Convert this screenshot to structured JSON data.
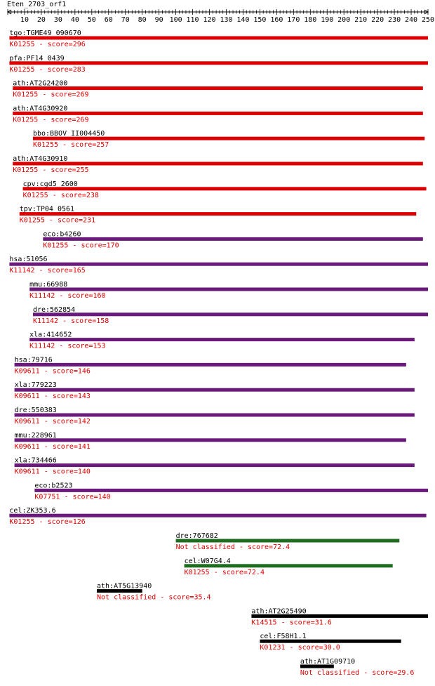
{
  "title": "Eten_2703_orf1",
  "axis": {
    "min": 0,
    "max": 250,
    "major_step": 10,
    "minor_step": 2,
    "ticks": [
      10,
      20,
      30,
      40,
      50,
      60,
      70,
      80,
      90,
      100,
      110,
      120,
      130,
      140,
      150,
      160,
      170,
      180,
      190,
      200,
      210,
      220,
      230,
      240,
      250
    ]
  },
  "colors": {
    "red": "#dd0000",
    "purple": "#6a1a7a",
    "green": "#1f6b1f",
    "black": "#000000",
    "label_red": "#e00000"
  },
  "hits": [
    {
      "id": "tgo:TGME49_090670",
      "ko": "K01255",
      "score_label": "K01255 - score=296",
      "start": 1,
      "end": 250,
      "color": "red"
    },
    {
      "id": "pfa:PF14_0439",
      "ko": "K01255",
      "score_label": "K01255 - score=283",
      "start": 1,
      "end": 250,
      "color": "red"
    },
    {
      "id": "ath:AT2G24200",
      "ko": "K01255",
      "score_label": "K01255 - score=269",
      "start": 3,
      "end": 247,
      "color": "red"
    },
    {
      "id": "ath:AT4G30920",
      "ko": "K01255",
      "score_label": "K01255 - score=269",
      "start": 3,
      "end": 247,
      "color": "red"
    },
    {
      "id": "bbo:BBOV_II004450",
      "ko": "K01255",
      "score_label": "K01255 - score=257",
      "start": 15,
      "end": 248,
      "color": "red"
    },
    {
      "id": "ath:AT4G30910",
      "ko": "K01255",
      "score_label": "K01255 - score=255",
      "start": 3,
      "end": 247,
      "color": "red"
    },
    {
      "id": "cpv:cgd5_2600",
      "ko": "K01255",
      "score_label": "K01255 - score=238",
      "start": 9,
      "end": 249,
      "color": "red"
    },
    {
      "id": "tpv:TP04_0561",
      "ko": "K01255",
      "score_label": "K01255 - score=231",
      "start": 7,
      "end": 243,
      "color": "red"
    },
    {
      "id": "eco:b4260",
      "ko": "K01255",
      "score_label": "K01255 - score=170",
      "start": 21,
      "end": 247,
      "color": "purple"
    },
    {
      "id": "hsa:51056",
      "ko": "K11142",
      "score_label": "K11142 - score=165",
      "start": 1,
      "end": 250,
      "color": "purple"
    },
    {
      "id": "mmu:66988",
      "ko": "K11142",
      "score_label": "K11142 - score=160",
      "start": 13,
      "end": 250,
      "color": "purple"
    },
    {
      "id": "dre:562854",
      "ko": "K11142",
      "score_label": "K11142 - score=158",
      "start": 15,
      "end": 250,
      "color": "purple"
    },
    {
      "id": "xla:414652",
      "ko": "K11142",
      "score_label": "K11142 - score=153",
      "start": 13,
      "end": 242,
      "color": "purple"
    },
    {
      "id": "hsa:79716",
      "ko": "K09611",
      "score_label": "K09611 - score=146",
      "start": 4,
      "end": 237,
      "color": "purple"
    },
    {
      "id": "xla:779223",
      "ko": "K09611",
      "score_label": "K09611 - score=143",
      "start": 4,
      "end": 242,
      "color": "purple"
    },
    {
      "id": "dre:550383",
      "ko": "K09611",
      "score_label": "K09611 - score=142",
      "start": 4,
      "end": 242,
      "color": "purple"
    },
    {
      "id": "mmu:228961",
      "ko": "K09611",
      "score_label": "K09611 - score=141",
      "start": 4,
      "end": 237,
      "color": "purple"
    },
    {
      "id": "xla:734466",
      "ko": "K09611",
      "score_label": "K09611 - score=140",
      "start": 4,
      "end": 242,
      "color": "purple"
    },
    {
      "id": "eco:b2523",
      "ko": "K07751",
      "score_label": "K07751 - score=140",
      "start": 16,
      "end": 250,
      "color": "purple"
    },
    {
      "id": "cel:ZK353.6",
      "ko": "K01255",
      "score_label": "K01255 - score=126",
      "start": 1,
      "end": 249,
      "color": "purple"
    },
    {
      "id": "dre:767682",
      "ko": "Not classified",
      "score_label": "Not classified - score=72.4",
      "start": 100,
      "end": 233,
      "color": "green"
    },
    {
      "id": "cel:W07G4.4",
      "ko": "K01255",
      "score_label": "K01255 - score=72.4",
      "start": 105,
      "end": 229,
      "color": "green"
    },
    {
      "id": "ath:AT5G13940",
      "ko": "Not classified",
      "score_label": "Not classified - score=35.4",
      "start": 53,
      "end": 80,
      "color": "black"
    },
    {
      "id": "ath:AT2G25490",
      "ko": "K14515",
      "score_label": "K14515 - score=31.6",
      "start": 145,
      "end": 250,
      "color": "black"
    },
    {
      "id": "cel:F58H1.1",
      "ko": "K01231",
      "score_label": "K01231 - score=30.0",
      "start": 150,
      "end": 234,
      "color": "black"
    },
    {
      "id": "ath:AT1G09710",
      "ko": "Not classified",
      "score_label": "Not classified - score=29.6",
      "start": 174,
      "end": 194,
      "color": "black"
    }
  ]
}
